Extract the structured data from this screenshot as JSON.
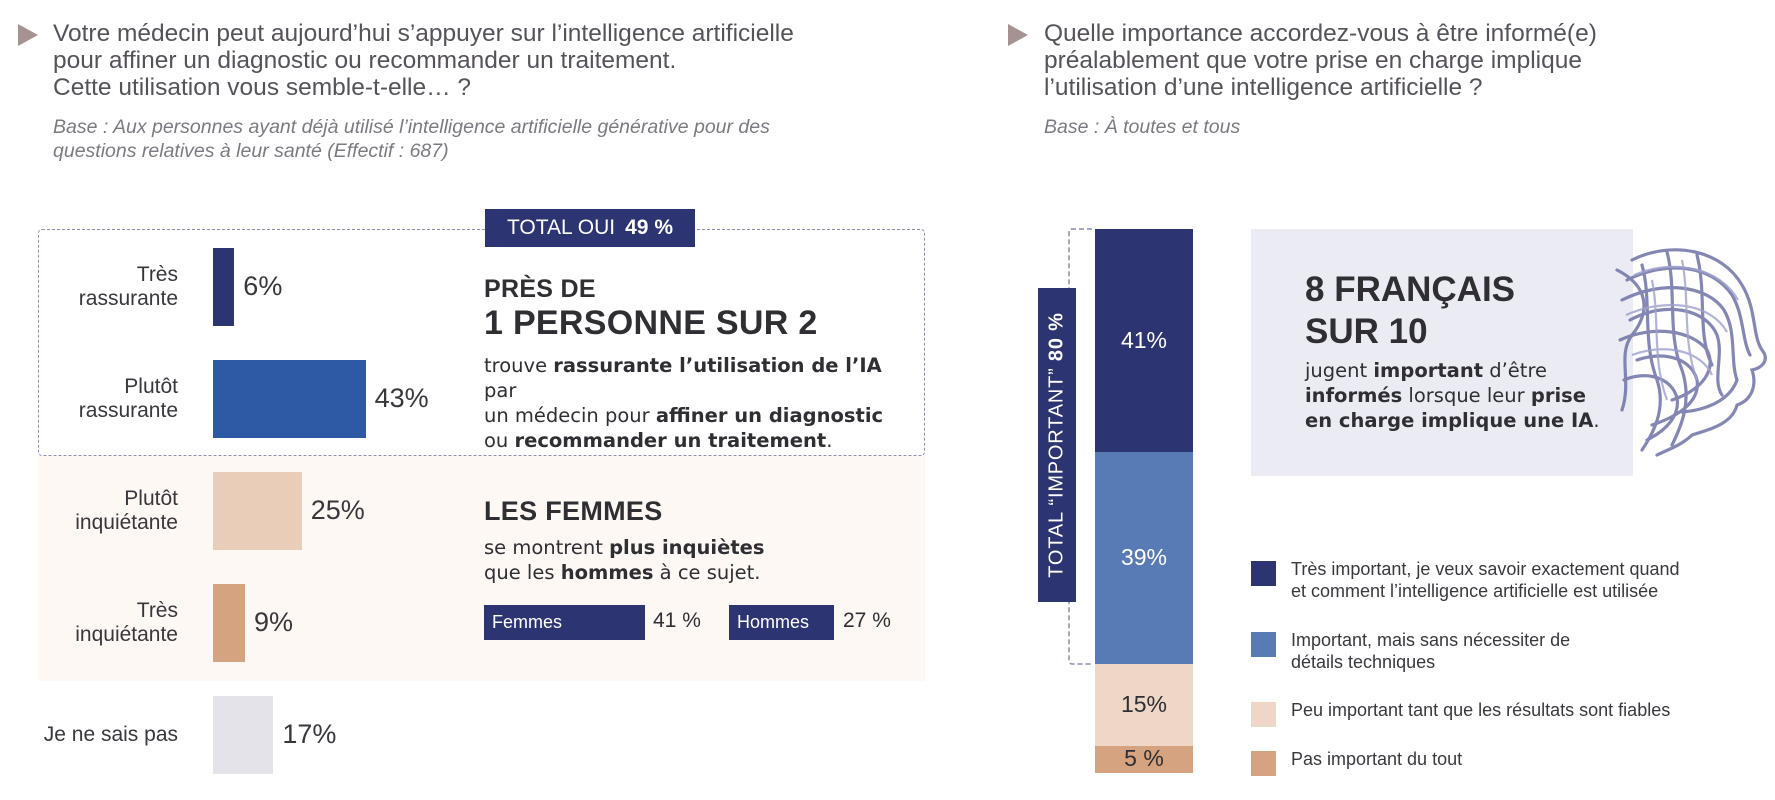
{
  "left": {
    "question": [
      "Votre médecin peut aujourd’hui s’appuyer sur l’intelligence artificielle",
      "pour affiner un diagnostic ou recommander un traitement.",
      "Cette utilisation vous semble-t-elle… ?"
    ],
    "base": [
      "Base : Aux personnes ayant déjà utilisé l’intelligence artificielle générative pour des",
      "questions relatives à leur santé (Effectif : 687)"
    ],
    "total_tag": {
      "label": "TOTAL OUI",
      "value": "49 %"
    },
    "headline_small": "PRÈS DE",
    "headline_big": "1 PERSONNE SUR 2",
    "desc": {
      "l1a": "trouve ",
      "l1b": "rassurante l’utilisation de l’IA",
      "l1c": " par",
      "l2a": "un médecin pour ",
      "l2b": "affiner un diagnostic",
      "l3a": "ou ",
      "l3b": "recommander un traitement",
      "l3c": "."
    },
    "women_title": "LES FEMMES",
    "women_desc": {
      "l1a": "se montrent ",
      "l1b": "plus inquiètes",
      "l2a": "que les ",
      "l2b": "hommes",
      "l2c": " à ce sujet."
    },
    "gender": [
      {
        "label": "Femmes",
        "value": "41 %"
      },
      {
        "label": "Hommes",
        "value": "27 %"
      }
    ]
  },
  "right": {
    "question": [
      "Quelle importance accordez-vous à être informé(e)",
      "préalablement que votre prise en charge implique",
      "l’utilisation d’une intelligence artificielle  ?"
    ],
    "base": "Base : À toutes et tous",
    "total_tag": {
      "label": "TOTAL “IMPORTANT”",
      "value": "80 %"
    },
    "callout": {
      "title1": "8 FRANÇAIS",
      "title2": "SUR 10",
      "l1a": "jugent ",
      "l1b": "important",
      "l1c": " d’être",
      "l2a": "informés",
      "l2b": " lorsque leur ",
      "l2c": "prise",
      "l3a": "en charge implique une IA",
      "l3b": "."
    }
  },
  "chart_data": [
    {
      "type": "bar",
      "orientation": "horizontal",
      "categories": [
        "Très rassurante",
        "Plutôt rassurante",
        "Plutôt inquiétante",
        "Très inquiétante",
        "Je ne sais pas"
      ],
      "category_lines": [
        [
          "Très",
          "rassurante"
        ],
        [
          "Plutôt",
          "rassurante"
        ],
        [
          "Plutôt",
          "inquiétante"
        ],
        [
          "Très",
          "inquiétante"
        ],
        [
          "Je ne sais pas"
        ]
      ],
      "values": [
        6,
        43,
        25,
        9,
        17
      ],
      "value_labels": [
        "6%",
        "43%",
        "25%",
        "9%",
        "17%"
      ],
      "colors": [
        "#2c3471",
        "#2e5aa5",
        "#e9cdb9",
        "#d5a37f",
        "#e3e3e9"
      ],
      "unit": "%"
    },
    {
      "type": "bar",
      "orientation": "vertical-stacked",
      "series": [
        {
          "name": "Très important, je veux savoir exactement quand et comment l’intelligence artificielle est utilisée",
          "legend_lines": [
            "Très important, je veux savoir exactement quand",
            "et comment l’intelligence artificielle est utilisée"
          ],
          "value": 41,
          "label": "41%",
          "color": "#2c3471",
          "text_color": "#ffffff"
        },
        {
          "name": "Important, mais sans nécessiter de détails techniques",
          "legend_lines": [
            "Important, mais sans nécessiter de",
            "détails techniques"
          ],
          "value": 39,
          "label": "39%",
          "color": "#587ab5",
          "text_color": "#ffffff"
        },
        {
          "name": "Peu important tant que les résultats sont fiables",
          "legend_lines": [
            "Peu important tant que les résultats sont fiables"
          ],
          "value": 15,
          "label": "15%",
          "color": "#eed7c7",
          "text_color": "#2e2e33"
        },
        {
          "name": "Pas important du tout",
          "legend_lines": [
            "Pas important du tout"
          ],
          "value": 5,
          "label": "5 %",
          "color": "#d5a37f",
          "text_color": "#2e2e33"
        }
      ],
      "unit": "%"
    }
  ]
}
